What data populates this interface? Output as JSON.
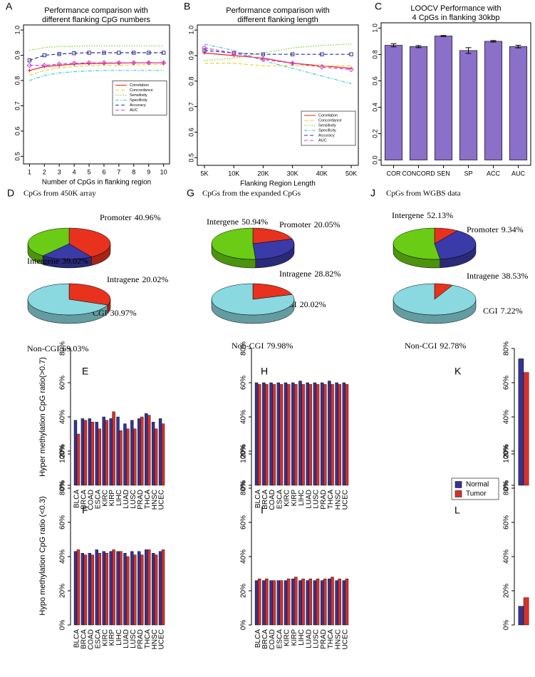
{
  "chart_data": [
    {
      "type": "line",
      "panel": "A",
      "title": [
        "Performance comparison with",
        "different flanking CpG numbers"
      ],
      "x_label": "Number of CpGs in flanking region",
      "x": [
        1,
        2,
        3,
        4,
        5,
        6,
        7,
        8,
        9,
        10
      ],
      "xlim": [
        0.6,
        10.4
      ],
      "xticks": [
        1,
        2,
        3,
        4,
        5,
        6,
        7,
        8,
        9,
        10
      ],
      "ylim": [
        0.47,
        1.02
      ],
      "yticks": [
        0.5,
        0.6,
        0.7,
        0.8,
        0.9,
        {
          "value": 1.0,
          "label": "1.0"
        }
      ],
      "legend": "center right",
      "series": [
        {
          "name": "Correlation",
          "color": "#e8202a",
          "linestyle": "solid",
          "marker": "cross",
          "values": [
            0.84,
            0.855,
            0.86,
            0.865,
            0.867,
            0.868,
            0.869,
            0.87,
            0.87,
            0.87
          ]
        },
        {
          "name": "Concordance",
          "color": "#e8d820",
          "linestyle": "dashed",
          "marker": "none",
          "values": [
            0.82,
            0.84,
            0.85,
            0.855,
            0.858,
            0.86,
            0.86,
            0.862,
            0.863,
            0.863
          ]
        },
        {
          "name": "Sensitivity",
          "color": "#7ccc2a",
          "linestyle": "dotted",
          "marker": "none",
          "values": [
            0.92,
            0.93,
            0.935,
            0.935,
            0.937,
            0.937,
            0.937,
            0.937,
            0.937,
            0.937
          ]
        },
        {
          "name": "Specificity",
          "color": "#40c8d8",
          "linestyle": "dashdot",
          "marker": "none",
          "values": [
            0.8,
            0.82,
            0.83,
            0.835,
            0.838,
            0.84,
            0.84,
            0.84,
            0.84,
            0.84
          ]
        },
        {
          "name": "Accuracy",
          "color": "#3030a0",
          "linestyle": "dashed",
          "marker": "square",
          "values": [
            0.88,
            0.9,
            0.905,
            0.908,
            0.91,
            0.91,
            0.91,
            0.91,
            0.91,
            0.91
          ]
        },
        {
          "name": "AUC",
          "color": "#d040d0",
          "linestyle": "dashed",
          "marker": "diamond",
          "values": [
            0.86,
            0.86,
            0.865,
            0.868,
            0.87,
            0.87,
            0.87,
            0.87,
            0.87,
            0.87
          ]
        }
      ]
    },
    {
      "type": "line",
      "panel": "B",
      "title": [
        "Performance comparison with",
        "different flanking length"
      ],
      "x_label": "Flanking Region Length",
      "categories": [
        "5K",
        "10K",
        "20K",
        "30K",
        "40K",
        "50K"
      ],
      "ylim": [
        0.47,
        1.02
      ],
      "yticks": [
        0.5,
        0.6,
        0.7,
        0.8,
        0.9,
        {
          "value": 1.0,
          "label": "1.0"
        }
      ],
      "legend": "bottom right",
      "series": [
        {
          "name": "Correlation",
          "color": "#e8202a",
          "linestyle": "solid",
          "marker": "cross",
          "values": [
            0.91,
            0.9,
            0.89,
            0.87,
            0.86,
            0.85
          ]
        },
        {
          "name": "Concordance",
          "color": "#e8d820",
          "linestyle": "dashed",
          "marker": "none",
          "values": [
            0.87,
            0.87,
            0.86,
            0.86,
            0.86,
            0.86
          ]
        },
        {
          "name": "Sensitivity",
          "color": "#7ccc2a",
          "linestyle": "dotted",
          "marker": "none",
          "values": [
            0.88,
            0.89,
            0.91,
            0.93,
            0.94,
            0.945
          ]
        },
        {
          "name": "Specificity",
          "color": "#40c8d8",
          "linestyle": "dashdot",
          "marker": "none",
          "values": [
            0.945,
            0.92,
            0.88,
            0.85,
            0.82,
            0.79
          ]
        },
        {
          "name": "Accuracy",
          "color": "#3030a0",
          "linestyle": "dashed",
          "marker": "square",
          "values": [
            0.92,
            0.91,
            0.905,
            0.905,
            0.905,
            0.905
          ]
        },
        {
          "name": "AUC",
          "color": "#d040d0",
          "linestyle": "dashed",
          "marker": "diamond",
          "values": [
            0.93,
            0.91,
            0.885,
            0.87,
            0.855,
            0.845
          ]
        }
      ]
    },
    {
      "type": "bar",
      "panel": "C",
      "title": [
        "LOOCV Performance with",
        "4 CpGs in flanking 30kbp"
      ],
      "categories": [
        "COR",
        "CONCORD",
        "SEN",
        "SP",
        "ACC",
        "AUC"
      ],
      "values": [
        0.87,
        0.86,
        0.94,
        0.83,
        0.9,
        0.86
      ],
      "errors": [
        0.012,
        0.008,
        0.004,
        0.022,
        0.006,
        0.01
      ],
      "color": "#8a70c8",
      "ylim": [
        -0.04,
        1.04
      ],
      "yticks": [
        {
          "value": 0,
          "label": "0.0"
        },
        0.2,
        0.4,
        0.6,
        0.8,
        {
          "value": 1.0,
          "label": "1.0"
        }
      ]
    },
    {
      "type": "pie",
      "panel": "D",
      "title": "CpGs from 450K array",
      "categories": [
        "Promoter",
        "Intragene",
        "Intergene"
      ],
      "values": [
        40.96,
        20.02,
        39.02
      ],
      "value_labels": [
        "40.96%",
        "20.02%",
        "39.02%"
      ],
      "colors": [
        "#e8321e",
        "#3a3aa8",
        "#6acc14"
      ]
    },
    {
      "type": "pie",
      "categories": [
        "CGI",
        "Non-CGI"
      ],
      "values": [
        30.97,
        69.03
      ],
      "value_labels": [
        "30.97%",
        "69.03%"
      ],
      "colors": [
        "#e8321e",
        "#8ad8e0"
      ]
    },
    {
      "type": "pie",
      "panel": "G",
      "title": "CpGs from the expanded CpGs",
      "categories": [
        "Promoter",
        "Intragene",
        "Intergene"
      ],
      "values": [
        20.05,
        28.82,
        50.94
      ],
      "value_labels": [
        "20.05%",
        "28.82%",
        "50.94%"
      ],
      "colors": [
        "#e8321e",
        "#3a3aa8",
        "#6acc14"
      ]
    },
    {
      "type": "pie",
      "categories": [
        "CGI",
        "Non-CGI"
      ],
      "values": [
        20.02,
        79.98
      ],
      "value_labels": [
        "20.02%",
        "79.98%"
      ],
      "colors": [
        "#e8321e",
        "#8ad8e0"
      ]
    },
    {
      "type": "pie",
      "panel": "J",
      "title": "CpGs from WGBS data",
      "categories": [
        "Promoter",
        "Intragene",
        "Intergene"
      ],
      "values": [
        9.34,
        38.53,
        52.13
      ],
      "value_labels": [
        "9.34%",
        "38.53%",
        "52.13%"
      ],
      "colors": [
        "#e8321e",
        "#3a3aa8",
        "#6acc14"
      ]
    },
    {
      "type": "pie",
      "categories": [
        "CGI",
        "Non-CGI"
      ],
      "values": [
        7.22,
        92.78
      ],
      "value_labels": [
        "7.22%",
        "92.78%"
      ],
      "colors": [
        "#e8321e",
        "#8ad8e0"
      ]
    },
    {
      "type": "groupbar",
      "panel": "E",
      "y_label": "Hyper methylation CpG ratio(>0.7)",
      "categories": [
        "BLCA",
        "BRCA",
        "COAD",
        "ESCA",
        "KIRC",
        "KIRP",
        "LIHC",
        "LUAD",
        "LUSC",
        "PRAD",
        "THCA",
        "HNSC",
        "UCEC"
      ],
      "ylim": [
        0,
        80
      ],
      "yticks": [
        {
          "value": 0,
          "label": "0%"
        },
        {
          "value": 20,
          "label": "20%"
        },
        {
          "value": 40,
          "label": "40%"
        },
        {
          "value": 60,
          "label": "60%"
        },
        {
          "value": 80,
          "label": "80%"
        }
      ],
      "series": [
        {
          "color": "#343490",
          "values": [
            38,
            39,
            39,
            37,
            40,
            39,
            40,
            36,
            38,
            39,
            42,
            37,
            39
          ]
        },
        {
          "color": "#d8302a",
          "values": [
            30,
            38,
            37,
            33,
            38,
            43,
            32,
            33,
            33,
            40,
            41,
            33,
            36
          ]
        }
      ]
    },
    {
      "type": "groupbar",
      "panel": "H",
      "categories": [
        "BLCA",
        "BRCA",
        "COAD",
        "ESCA",
        "KIRC",
        "KIRP",
        "LIHC",
        "LUAD",
        "LUSC",
        "PRAD",
        "THCA",
        "HNSC",
        "UCEC"
      ],
      "ylim": [
        0,
        80
      ],
      "yticks": [
        {
          "value": 0,
          "label": "0%"
        },
        {
          "value": 20,
          "label": "20%"
        },
        {
          "value": 40,
          "label": "40%"
        },
        {
          "value": 60,
          "label": "60%"
        },
        {
          "value": 80,
          "label": "80%"
        }
      ],
      "series": [
        {
          "color": "#343490",
          "values": [
            60,
            60,
            60,
            60,
            60,
            60,
            61,
            60,
            60,
            60,
            61,
            60,
            60
          ]
        },
        {
          "color": "#d8302a",
          "values": [
            59,
            59,
            59,
            59,
            59,
            59,
            59,
            59,
            59,
            59,
            59,
            59,
            59
          ]
        }
      ]
    },
    {
      "type": "groupbar",
      "panel": "K",
      "categories": [
        null
      ],
      "legend": "bottom",
      "ylim": [
        0,
        80
      ],
      "yticks": [
        {
          "value": 0,
          "label": "0%"
        },
        {
          "value": 20,
          "label": "20%"
        },
        {
          "value": 40,
          "label": "40%"
        },
        {
          "value": 60,
          "label": "60%"
        },
        {
          "value": 80,
          "label": "80%"
        }
      ],
      "series": [
        {
          "name": "Normal",
          "color": "#343490",
          "values": [
            74
          ]
        },
        {
          "name": "Tumor",
          "color": "#d8302a",
          "values": [
            66
          ]
        }
      ]
    },
    {
      "type": "groupbar",
      "panel": "F",
      "y_label": "Hypo methylation CpG ratio (<0.3)",
      "categories": [
        "BLCA",
        "BRCA",
        "COAD",
        "ESCA",
        "KIRC",
        "KIRP",
        "LIHC",
        "LUAD",
        "LUSC",
        "PRAD",
        "THCA",
        "HNSC",
        "UCEC"
      ],
      "ylim": [
        0,
        100
      ],
      "yticks": [
        {
          "value": 0,
          "label": "0%"
        },
        {
          "value": 20,
          "label": "20%"
        },
        {
          "value": 40,
          "label": "40%"
        },
        {
          "value": 60,
          "label": "60%"
        },
        {
          "value": 80,
          "label": "80%"
        },
        {
          "value": 100,
          "label": "100%"
        }
      ],
      "series": [
        {
          "color": "#343490",
          "values": [
            43,
            42,
            42,
            44,
            43,
            43,
            43,
            42,
            43,
            43,
            44,
            42,
            43
          ]
        },
        {
          "color": "#d8302a",
          "values": [
            44,
            41,
            41,
            42,
            42,
            44,
            43,
            40,
            41,
            41,
            44,
            41,
            44
          ]
        }
      ]
    },
    {
      "type": "groupbar",
      "panel": "I",
      "categories": [
        "BLCA",
        "BRCA",
        "COAD",
        "ESCA",
        "KIRC",
        "KIRP",
        "LIHC",
        "LUAD",
        "LUSC",
        "PRAD",
        "THCA",
        "HNSC",
        "UCEC"
      ],
      "ylim": [
        0,
        100
      ],
      "yticks": [
        {
          "value": 0,
          "label": "0%"
        },
        {
          "value": 20,
          "label": "20%"
        },
        {
          "value": 40,
          "label": "40%"
        },
        {
          "value": 60,
          "label": "60%"
        },
        {
          "value": 80,
          "label": "80%"
        },
        {
          "value": 100,
          "label": "100%"
        }
      ],
      "series": [
        {
          "color": "#343490",
          "values": [
            26,
            26,
            26,
            26,
            26,
            27,
            26,
            26,
            26,
            26,
            27,
            26,
            26
          ]
        },
        {
          "color": "#d8302a",
          "values": [
            27,
            27,
            26,
            26,
            27,
            28,
            27,
            27,
            27,
            27,
            28,
            27,
            27
          ]
        }
      ]
    },
    {
      "type": "groupbar",
      "panel": "L",
      "categories": [
        null
      ],
      "ylim": [
        0,
        100
      ],
      "yticks": [
        {
          "value": 0,
          "label": "0%"
        },
        {
          "value": 20,
          "label": "20%"
        },
        {
          "value": 40,
          "label": "40%"
        },
        {
          "value": 60,
          "label": "60%"
        },
        {
          "value": 80,
          "label": "80%"
        },
        {
          "value": 100,
          "label": "100%"
        }
      ],
      "series": [
        {
          "color": "#343490",
          "values": [
            11
          ]
        },
        {
          "color": "#d8302a",
          "values": [
            16
          ]
        }
      ]
    }
  ]
}
